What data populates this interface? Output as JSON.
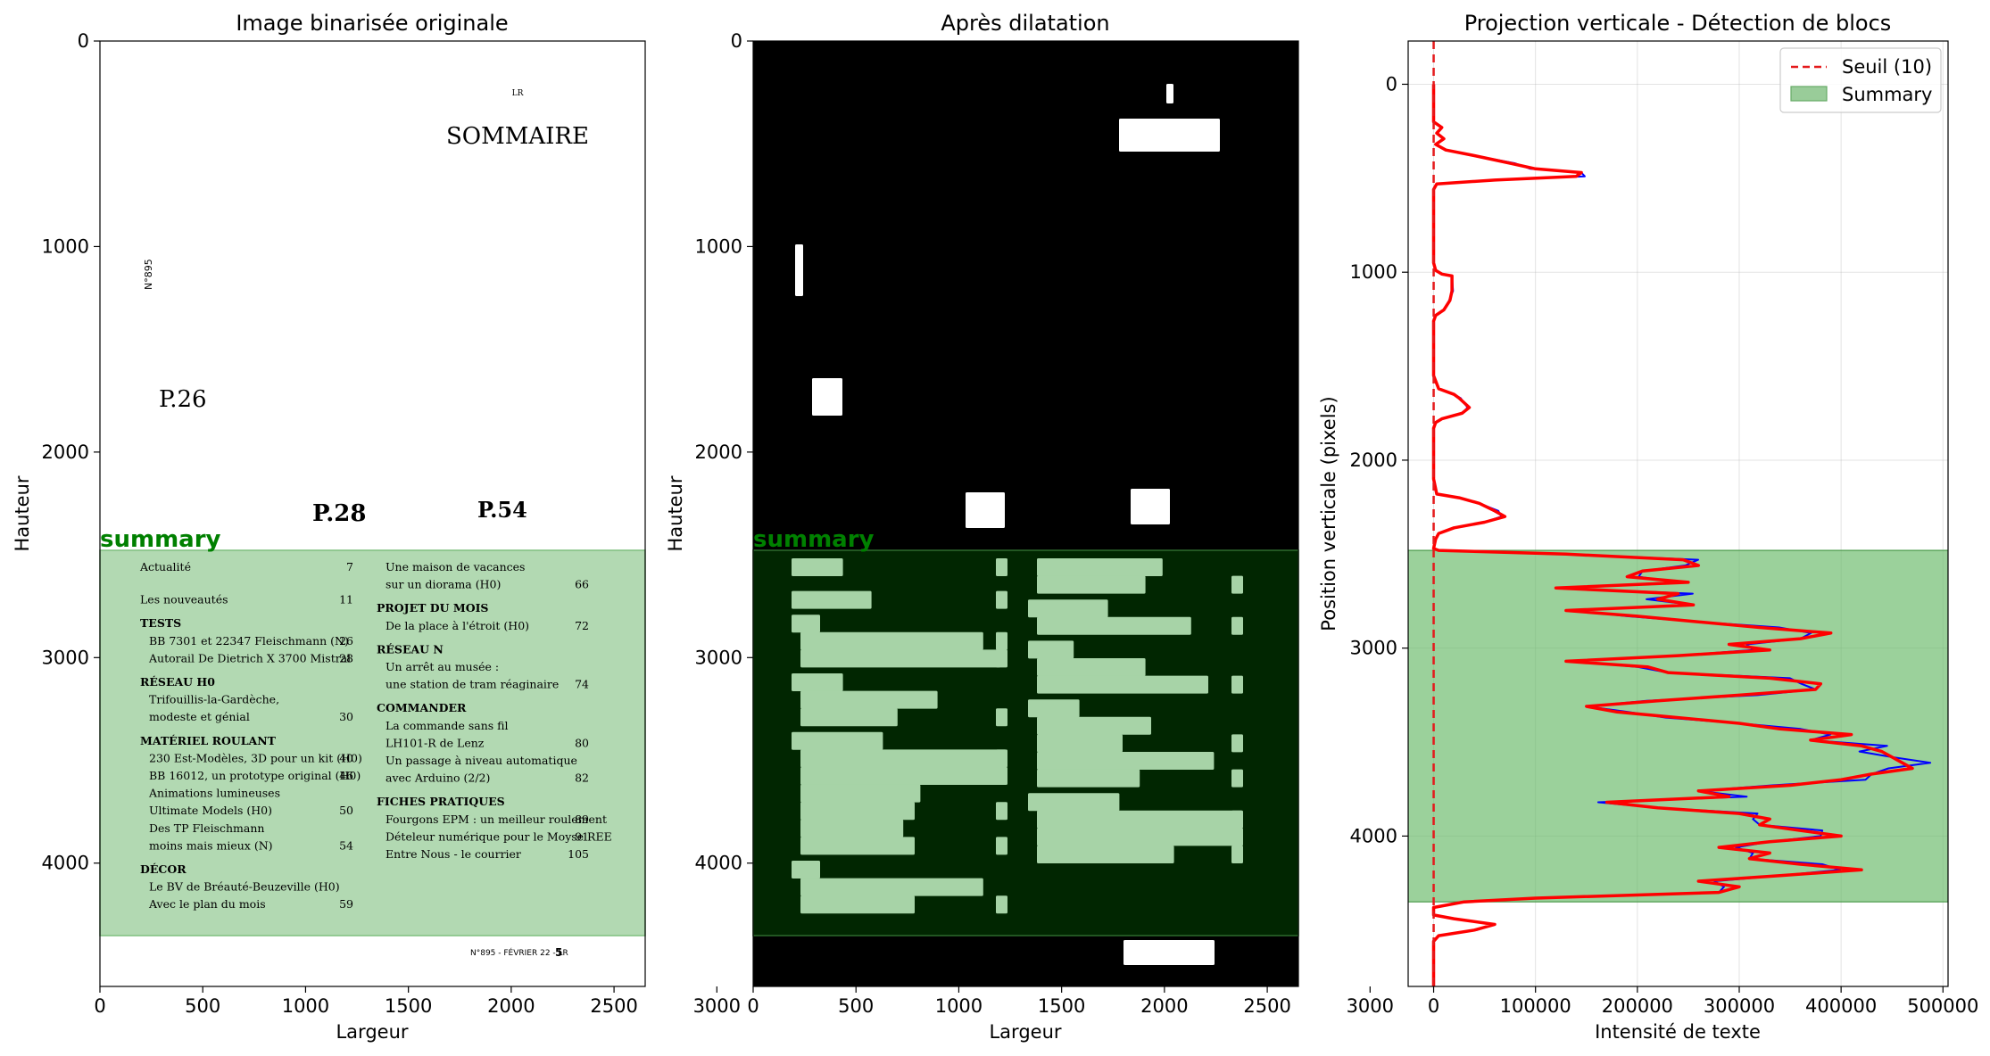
{
  "figure": {
    "panels": [
      {
        "title": "Image binarisée originale",
        "xlabel": "Largeur",
        "ylabel": "Hauteur",
        "xticks": [
          "0",
          "500",
          "1000",
          "1500",
          "2000",
          "2500",
          "3000"
        ],
        "yticks": [
          "0",
          "1000",
          "2000",
          "3000",
          "4000"
        ],
        "region_label": "summary"
      },
      {
        "title": "Après dilatation",
        "xlabel": "Largeur",
        "ylabel": "Hauteur",
        "xticks": [
          "0",
          "500",
          "1000",
          "1500",
          "2000",
          "2500",
          "3000"
        ],
        "yticks": [
          "0",
          "1000",
          "2000",
          "3000",
          "4000"
        ],
        "region_label": "summary"
      },
      {
        "title": "Projection verticale - Détection de blocs",
        "xlabel": "Intensité de texte",
        "ylabel": "Position verticale (pixels)",
        "xticks": [
          "0",
          "100000",
          "200000",
          "300000",
          "400000",
          "500000"
        ],
        "yticks": [
          "0",
          "1000",
          "2000",
          "3000",
          "4000"
        ]
      }
    ]
  },
  "document": {
    "header_small": "LR",
    "title": "SOMMAIRE",
    "issue_vertical": "N°895",
    "page_refs": [
      "P.26",
      "P.28",
      "P.54"
    ],
    "toc_left": [
      {
        "text": "Actualité",
        "page": "7",
        "kind": "entry"
      },
      {
        "text": "Les nouveautés",
        "page": "11",
        "kind": "entry"
      },
      {
        "text": "TESTS",
        "page": "",
        "kind": "heading"
      },
      {
        "text": "BB 7301 et 22347 Fleischmann (N)",
        "page": "26",
        "kind": "item"
      },
      {
        "text": "Autorail De Dietrich X 3700 Mistral",
        "page": "28",
        "kind": "item"
      },
      {
        "text": "RÉSEAU H0",
        "page": "",
        "kind": "heading"
      },
      {
        "text": "Trifouillis-la-Gardèche,",
        "page": "",
        "kind": "item"
      },
      {
        "text": "modeste et génial",
        "page": "30",
        "kind": "item"
      },
      {
        "text": "MATÉRIEL ROULANT",
        "page": "",
        "kind": "heading"
      },
      {
        "text": "230 Est-Modèles, 3D pour un kit (H0)",
        "page": "40",
        "kind": "item"
      },
      {
        "text": "BB 16012, un prototype original (H0)",
        "page": "46",
        "kind": "item"
      },
      {
        "text": "Animations lumineuses",
        "page": "",
        "kind": "item"
      },
      {
        "text": "Ultimate Models (H0)",
        "page": "50",
        "kind": "item"
      },
      {
        "text": "Des TP Fleischmann",
        "page": "",
        "kind": "item"
      },
      {
        "text": "moins mais mieux (N)",
        "page": "54",
        "kind": "item"
      },
      {
        "text": "DÉCOR",
        "page": "",
        "kind": "heading"
      },
      {
        "text": "Le BV de Bréauté-Beuzeville (H0)",
        "page": "",
        "kind": "item"
      },
      {
        "text": "Avec le plan du mois",
        "page": "59",
        "kind": "item"
      }
    ],
    "toc_right": [
      {
        "text": "Une maison de vacances",
        "page": "",
        "kind": "item"
      },
      {
        "text": "sur un diorama (H0)",
        "page": "66",
        "kind": "item"
      },
      {
        "text": "PROJET DU MOIS",
        "page": "",
        "kind": "heading"
      },
      {
        "text": "De la place à l'étroit (H0)",
        "page": "72",
        "kind": "item"
      },
      {
        "text": "RÉSEAU N",
        "page": "",
        "kind": "heading"
      },
      {
        "text": "Un arrêt au musée :",
        "page": "",
        "kind": "item"
      },
      {
        "text": "une station de tram réaginaire",
        "page": "74",
        "kind": "item"
      },
      {
        "text": "COMMANDER",
        "page": "",
        "kind": "heading"
      },
      {
        "text": "La commande sans fil",
        "page": "",
        "kind": "item"
      },
      {
        "text": "LH101-R de Lenz",
        "page": "80",
        "kind": "item"
      },
      {
        "text": "Un passage à niveau automatique",
        "page": "",
        "kind": "item"
      },
      {
        "text": "avec Arduino (2/2)",
        "page": "82",
        "kind": "item"
      },
      {
        "text": "FICHES PRATIQUES",
        "page": "",
        "kind": "heading"
      },
      {
        "text": "Fourgons EPM : un meilleur roulement",
        "page": "89",
        "kind": "item"
      },
      {
        "text": "Dételeur numérique pour le Moyse REE",
        "page": "91",
        "kind": "item"
      },
      {
        "text": "Entre Nous - le courrier",
        "page": "105",
        "kind": "item"
      }
    ],
    "footer": "N°895 - FÉVRIER 22 - LR",
    "footer_page": "5"
  },
  "chart_data": {
    "type": "line",
    "title": "Projection verticale - Détection de blocs",
    "xlabel": "Intensité de texte",
    "ylabel": "Position verticale (pixels)",
    "xlim": [
      -25000,
      505000
    ],
    "ylim": [
      4800,
      -230
    ],
    "y_inverted": true,
    "grid": true,
    "legend_position": "top-right",
    "legend": [
      "Seuil (10)",
      "Summary"
    ],
    "threshold": {
      "name": "Seuil (10)",
      "x": 10,
      "color": "#e41a1c",
      "style": "dashed"
    },
    "block": {
      "name": "Summary",
      "y_start": 2480,
      "y_end": 4350,
      "color": "#66bb66"
    },
    "colors": {
      "profile": "#ff0000",
      "raw": "#0000ff",
      "summary_label": "#008000"
    },
    "profile": {
      "y": [
        0,
        150,
        200,
        230,
        260,
        290,
        320,
        350,
        380,
        420,
        450,
        470,
        490,
        510,
        530,
        560,
        600,
        700,
        800,
        900,
        950,
        990,
        1010,
        1020,
        1100,
        1150,
        1200,
        1230,
        1260,
        1400,
        1550,
        1620,
        1650,
        1670,
        1720,
        1750,
        1780,
        1800,
        1830,
        1900,
        2000,
        2100,
        2180,
        2200,
        2230,
        2270,
        2300,
        2330,
        2360,
        2390,
        2420,
        2470,
        2480,
        2500,
        2530,
        2560,
        2590,
        2620,
        2650,
        2680,
        2710,
        2740,
        2770,
        2800,
        2830,
        2860,
        2890,
        2920,
        2950,
        2980,
        3010,
        3040,
        3070,
        3100,
        3130,
        3160,
        3190,
        3220,
        3250,
        3280,
        3310,
        3340,
        3370,
        3400,
        3430,
        3460,
        3490,
        3520,
        3550,
        3580,
        3610,
        3640,
        3670,
        3700,
        3730,
        3760,
        3790,
        3820,
        3850,
        3880,
        3910,
        3940,
        3970,
        4000,
        4030,
        4060,
        4090,
        4120,
        4150,
        4180,
        4210,
        4240,
        4270,
        4300,
        4330,
        4350,
        4380,
        4420,
        4440,
        4470,
        4500,
        4530,
        4560,
        4600,
        4800
      ],
      "x": [
        0,
        0,
        0,
        8000,
        3000,
        10000,
        2000,
        12000,
        40000,
        75000,
        100000,
        145000,
        140000,
        60000,
        3000,
        0,
        0,
        0,
        0,
        0,
        0,
        2000,
        8000,
        18000,
        18000,
        16000,
        10000,
        2000,
        0,
        0,
        0,
        5000,
        20000,
        25000,
        35000,
        28000,
        8000,
        2000,
        0,
        0,
        0,
        0,
        3000,
        25000,
        45000,
        60000,
        70000,
        50000,
        20000,
        5000,
        2000,
        0,
        5000,
        130000,
        245000,
        260000,
        205000,
        190000,
        250000,
        120000,
        240000,
        220000,
        255000,
        130000,
        200000,
        260000,
        320000,
        390000,
        360000,
        290000,
        330000,
        240000,
        130000,
        210000,
        230000,
        330000,
        380000,
        375000,
        300000,
        220000,
        150000,
        180000,
        240000,
        300000,
        340000,
        410000,
        370000,
        420000,
        440000,
        450000,
        460000,
        470000,
        430000,
        400000,
        350000,
        260000,
        290000,
        170000,
        220000,
        300000,
        330000,
        320000,
        360000,
        400000,
        330000,
        280000,
        330000,
        310000,
        360000,
        420000,
        340000,
        260000,
        300000,
        280000,
        100000,
        30000,
        0,
        0,
        20000,
        60000,
        40000,
        5000,
        0,
        0,
        0
      ]
    }
  }
}
